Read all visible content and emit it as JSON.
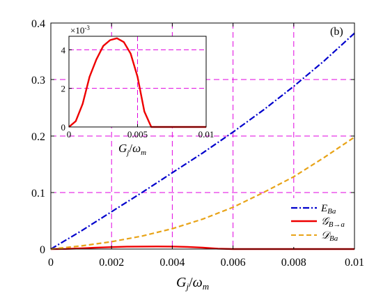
{
  "chart_data": [
    {
      "type": "line",
      "panel_label": "(b)",
      "panel_label_color": "#cc33ff",
      "xlabel": {
        "main": "G",
        "sub1": "j",
        "slash": "/",
        "main2": "ω",
        "sub2": "m"
      },
      "ylabel": "",
      "xlim": [
        0,
        0.01
      ],
      "ylim": [
        0,
        0.4
      ],
      "x_ticks": [
        {
          "value": 0,
          "label": "0"
        },
        {
          "value": 0.002,
          "label": "0.002"
        },
        {
          "value": 0.004,
          "label": "0.004"
        },
        {
          "value": 0.006,
          "label": "0.006"
        },
        {
          "value": 0.008,
          "label": "0.008"
        },
        {
          "value": 0.01,
          "label": "0.01"
        }
      ],
      "y_ticks": [
        {
          "value": 0,
          "label": "0"
        },
        {
          "value": 0.1,
          "label": "0.1"
        },
        {
          "value": 0.2,
          "label": "0.2"
        },
        {
          "value": 0.3,
          "label": "0.3"
        },
        {
          "value": 0.4,
          "label": "0.4"
        }
      ],
      "grid": "dashed magenta",
      "grid_color": "#e000e0",
      "legend_position": "bottom-right",
      "series": [
        {
          "name": "E_Ba",
          "legend": {
            "main": "E",
            "sub": "Ba"
          },
          "color": "#0000cc",
          "style": "dash-dot",
          "x": [
            0,
            0.001,
            0.002,
            0.003,
            0.004,
            0.005,
            0.006,
            0.007,
            0.008,
            0.009,
            0.01
          ],
          "y": [
            0,
            0.032,
            0.066,
            0.1,
            0.135,
            0.17,
            0.207,
            0.246,
            0.288,
            0.333,
            0.382
          ]
        },
        {
          "name": "G_B→a",
          "legend": {
            "main": "𝒢",
            "sub": "B→a"
          },
          "color": "#ee0000",
          "style": "solid",
          "x": [
            0,
            0.0005,
            0.001,
            0.0015,
            0.002,
            0.0025,
            0.003,
            0.0035,
            0.004,
            0.0045,
            0.005,
            0.0055,
            0.006,
            0.007,
            0.008,
            0.009,
            0.01
          ],
          "y": [
            0,
            0.0003,
            0.0012,
            0.0026,
            0.0035,
            0.0042,
            0.0045,
            0.0046,
            0.0044,
            0.0038,
            0.0026,
            0.0008,
            0,
            0,
            0,
            0,
            0
          ]
        },
        {
          "name": "D_Ba",
          "legend": {
            "main": "𝒟",
            "sub": "Ba"
          },
          "color": "#e8a317",
          "style": "dashed",
          "x": [
            0,
            0.001,
            0.002,
            0.003,
            0.004,
            0.005,
            0.006,
            0.007,
            0.008,
            0.009,
            0.01
          ],
          "y": [
            0,
            0.0055,
            0.013,
            0.023,
            0.036,
            0.053,
            0.074,
            0.1,
            0.128,
            0.162,
            0.198
          ]
        }
      ]
    },
    {
      "type": "line",
      "role": "inset",
      "xlabel": {
        "main": "G",
        "sub1": "j",
        "slash": "/",
        "main2": "ω",
        "sub2": "m"
      },
      "xlim": [
        0,
        0.01
      ],
      "ylim": [
        0,
        0.0047
      ],
      "y_multiplier": {
        "base": "×10",
        "exp": "-3"
      },
      "x_ticks": [
        {
          "value": 0,
          "label": "0"
        },
        {
          "value": 0.005,
          "label": "0.005"
        },
        {
          "value": 0.01,
          "label": "0.01"
        }
      ],
      "y_ticks": [
        {
          "value": 0,
          "label": "0"
        },
        {
          "value": 0.002,
          "label": "2"
        },
        {
          "value": 0.004,
          "label": "4"
        }
      ],
      "grid_x": [
        0.005
      ],
      "grid_y": [
        0.002,
        0.004
      ],
      "series": [
        {
          "name": "G_B→a",
          "color": "#ee0000",
          "style": "solid",
          "x": [
            0,
            0.0005,
            0.001,
            0.0015,
            0.002,
            0.0025,
            0.003,
            0.0035,
            0.004,
            0.0045,
            0.005,
            0.0055,
            0.006,
            0.007,
            0.008,
            0.009,
            0.01
          ],
          "y": [
            0,
            0.0003,
            0.0012,
            0.0026,
            0.0035,
            0.0042,
            0.0045,
            0.0046,
            0.0044,
            0.0038,
            0.0026,
            0.0008,
            0,
            0,
            0,
            0,
            0
          ]
        }
      ]
    }
  ]
}
